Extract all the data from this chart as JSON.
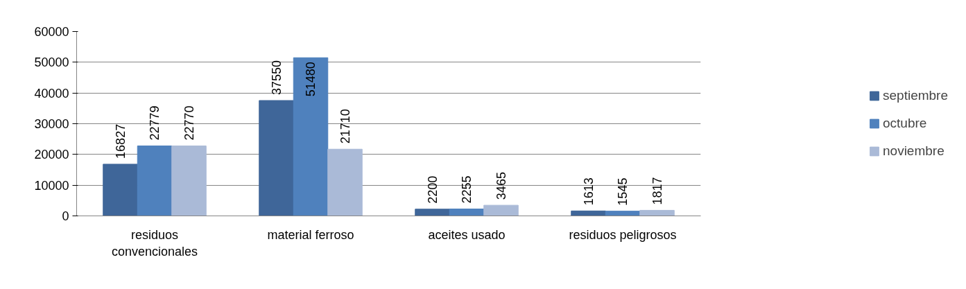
{
  "chart_data": {
    "type": "bar",
    "categories": [
      "residuos convencionales",
      "material ferroso",
      "aceites usado",
      "residuos peligrosos"
    ],
    "series": [
      {
        "name": "septiembre",
        "color": "#3f6699",
        "values": [
          16827,
          37550,
          2200,
          1613
        ]
      },
      {
        "name": "octubre",
        "color": "#4f81bd",
        "values": [
          22779,
          51480,
          2255,
          1545
        ]
      },
      {
        "name": "noviembre",
        "color": "#aabad7",
        "values": [
          22770,
          21710,
          3465,
          1817
        ]
      }
    ],
    "ylim": [
      0,
      60000
    ],
    "yticks": [
      0,
      10000,
      20000,
      30000,
      40000,
      50000,
      60000
    ],
    "grid": "y",
    "legend": "right",
    "data_labels": true
  }
}
